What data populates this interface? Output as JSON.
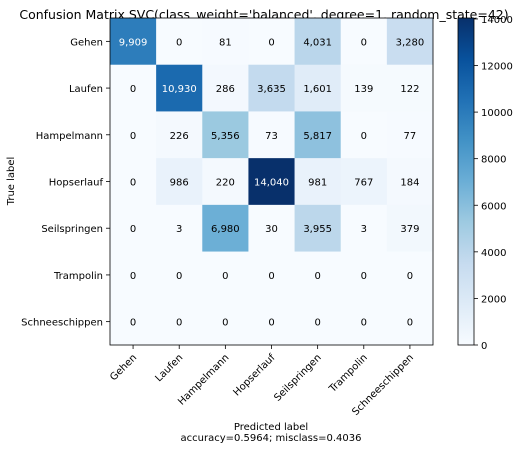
{
  "chart_data": {
    "type": "heatmap",
    "title": "Confusion Matrix SVC(class_weight='balanced', degree=1, random_state=42)",
    "xlabel": "Predicted label",
    "xlabel2": "accuracy=0.5964; misclass=0.4036",
    "ylabel": "True label",
    "row_labels": [
      "Gehen",
      "Laufen",
      "Hampelmann",
      "Hopserlauf",
      "Seilspringen",
      "Trampolin",
      "Schneeschippen"
    ],
    "col_labels": [
      "Gehen",
      "Laufen",
      "Hampelmann",
      "Hopserlauf",
      "Seilspringen",
      "Trampolin",
      "Schneeschippen"
    ],
    "values": [
      [
        9909,
        0,
        81,
        0,
        4031,
        0,
        3280
      ],
      [
        0,
        10930,
        286,
        3635,
        1601,
        139,
        122
      ],
      [
        0,
        226,
        5356,
        73,
        5817,
        0,
        77
      ],
      [
        0,
        986,
        220,
        14040,
        981,
        767,
        184
      ],
      [
        0,
        3,
        6980,
        30,
        3955,
        3,
        379
      ],
      [
        0,
        0,
        0,
        0,
        0,
        0,
        0
      ],
      [
        0,
        0,
        0,
        0,
        0,
        0,
        0
      ]
    ],
    "value_labels": [
      [
        "9,909",
        "0",
        "81",
        "0",
        "4,031",
        "0",
        "3,280"
      ],
      [
        "0",
        "10,930",
        "286",
        "3,635",
        "1,601",
        "139",
        "122"
      ],
      [
        "0",
        "226",
        "5,356",
        "73",
        "5,817",
        "0",
        "77"
      ],
      [
        "0",
        "986",
        "220",
        "14,040",
        "981",
        "767",
        "184"
      ],
      [
        "0",
        "3",
        "6,980",
        "30",
        "3,955",
        "3",
        "379"
      ],
      [
        "0",
        "0",
        "0",
        "0",
        "0",
        "0",
        "0"
      ],
      [
        "0",
        "0",
        "0",
        "0",
        "0",
        "0",
        "0"
      ]
    ],
    "colormap": "Blues",
    "colorbar": {
      "min": 0,
      "max": 14040,
      "ticks": [
        0,
        2000,
        4000,
        6000,
        8000,
        10000,
        12000,
        14000
      ]
    }
  }
}
